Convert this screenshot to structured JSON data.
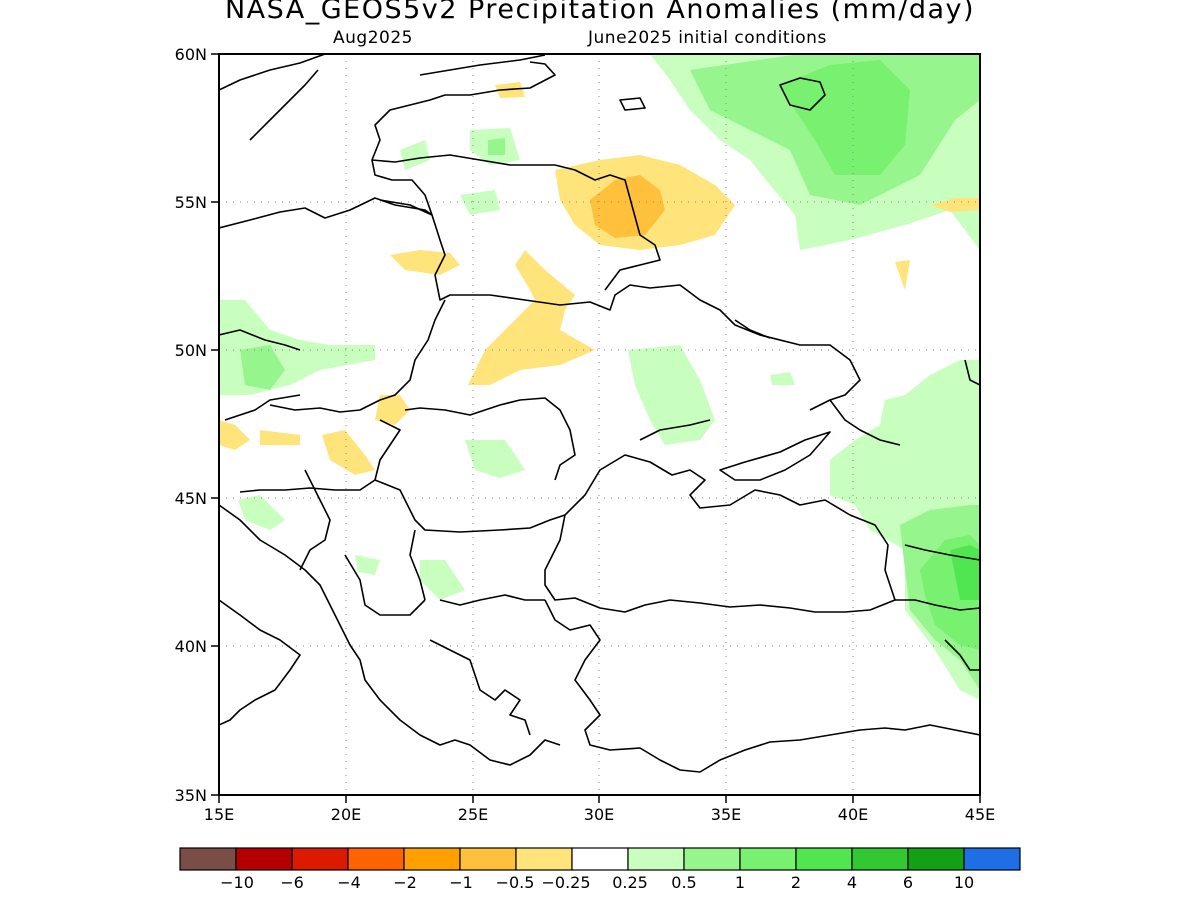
{
  "title": "NASA_GEOS5v2 Precipitation Anomalies (mm/day)",
  "subtitle_left": "Aug2025",
  "subtitle_right": "June2025 initial conditions",
  "axes": {
    "lat_labels": [
      "60N",
      "55N",
      "50N",
      "45N",
      "40N",
      "35N"
    ],
    "lon_labels": [
      "15E",
      "20E",
      "25E",
      "30E",
      "35E",
      "40E",
      "45E"
    ],
    "lon_range": [
      15,
      45
    ],
    "lat_range": [
      35,
      60
    ],
    "grid": "dotted"
  },
  "colorbar": {
    "colors": [
      "#7a4e46",
      "#b40000",
      "#dc1a00",
      "#ff6400",
      "#ffa000",
      "#ffc03c",
      "#ffe47c",
      "#ffffff",
      "#c8ffbe",
      "#96f58c",
      "#78f070",
      "#50e650",
      "#32c832",
      "#14a014",
      "#1e6ee6"
    ],
    "tick_labels": [
      "−10",
      "−6",
      "−4",
      "−2",
      "−1",
      "−0.5",
      "−0.25",
      "0.25",
      "0.5",
      "1",
      "2",
      "4",
      "6",
      "10"
    ]
  }
}
